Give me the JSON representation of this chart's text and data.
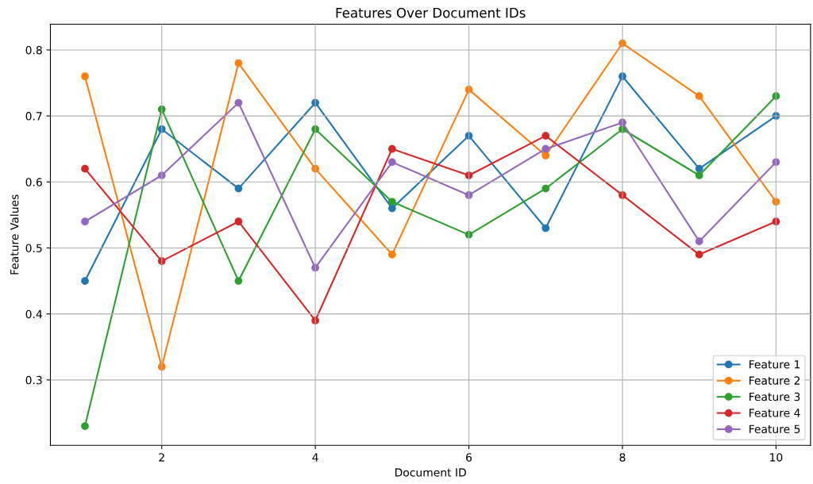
{
  "chart_data": {
    "type": "line",
    "title": "Features Over Document IDs",
    "xlabel": "Document ID",
    "ylabel": "Feature Values",
    "x": [
      1,
      2,
      3,
      4,
      5,
      6,
      7,
      8,
      9,
      10
    ],
    "series": [
      {
        "name": "Feature 1",
        "color": "#1f77b4",
        "values": [
          0.45,
          0.68,
          0.59,
          0.72,
          0.56,
          0.67,
          0.53,
          0.76,
          0.62,
          0.7
        ]
      },
      {
        "name": "Feature 2",
        "color": "#ff7f0e",
        "values": [
          0.76,
          0.32,
          0.78,
          0.62,
          0.49,
          0.74,
          0.64,
          0.81,
          0.73,
          0.57
        ]
      },
      {
        "name": "Feature 3",
        "color": "#2ca02c",
        "values": [
          0.23,
          0.71,
          0.45,
          0.68,
          0.57,
          0.52,
          0.59,
          0.68,
          0.61,
          0.73
        ]
      },
      {
        "name": "Feature 4",
        "color": "#d62728",
        "values": [
          0.62,
          0.48,
          0.54,
          0.39,
          0.65,
          0.61,
          0.67,
          0.58,
          0.49,
          0.54
        ]
      },
      {
        "name": "Feature 5",
        "color": "#9467bd",
        "values": [
          0.54,
          0.61,
          0.72,
          0.47,
          0.63,
          0.58,
          0.65,
          0.69,
          0.51,
          0.63
        ]
      }
    ],
    "xlim": [
      0.55,
      10.45
    ],
    "xticks": [
      2,
      4,
      6,
      8,
      10
    ],
    "ylim": [
      0.201,
      0.839
    ],
    "yticks": [
      0.3,
      0.4,
      0.5,
      0.6,
      0.7,
      0.8
    ],
    "grid": true,
    "legend": "lower right",
    "marker": "circle",
    "line_style": "solid"
  }
}
